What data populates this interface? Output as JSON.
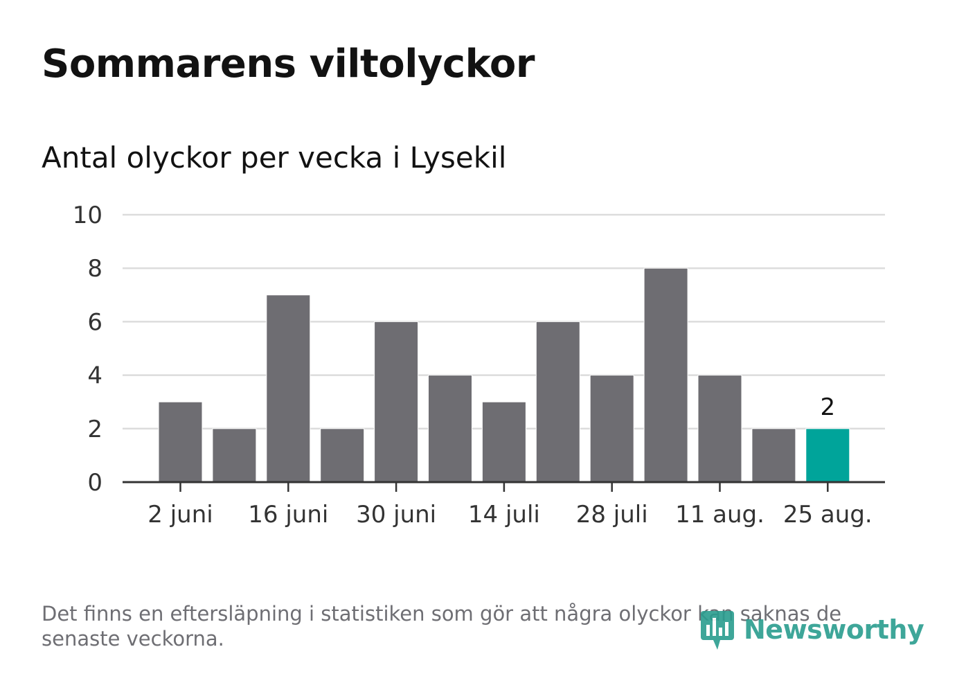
{
  "title": "Sommarens viltolyckor",
  "subtitle": "Antal olyckor per vecka i Lysekil",
  "footnote": "Det finns en eftersläpning i statistiken som gör att några olyckor kan saknas de senaste veckorna.",
  "brand": {
    "name": "Newsworthy",
    "icon": "newsworthy-logo-icon",
    "color": "#2a9d8f"
  },
  "colors": {
    "bar": "#6e6d72",
    "highlight": "#00a49a",
    "grid": "#dcdcdc",
    "axis": "#333333",
    "text": "#121212"
  },
  "chart_data": {
    "type": "bar",
    "x": [
      "2 juni",
      "",
      "16 juni",
      "",
      "30 juni",
      "",
      "14 juli",
      "",
      "28 juli",
      "",
      "11 aug.",
      "",
      "25 aug."
    ],
    "values": [
      3,
      2,
      7,
      2,
      6,
      4,
      3,
      6,
      4,
      8,
      4,
      2,
      2
    ],
    "highlight_index": 12,
    "highlight_label": "2",
    "yticks": [
      0,
      2,
      4,
      6,
      8,
      10
    ],
    "ylim": [
      0,
      10
    ],
    "grid": true,
    "legend": false
  }
}
